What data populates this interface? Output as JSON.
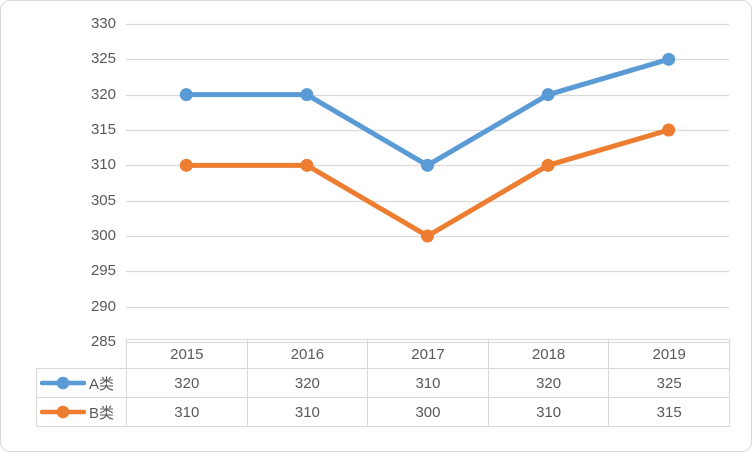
{
  "chart_data": {
    "type": "line",
    "title": "",
    "categories": [
      "2015",
      "2016",
      "2017",
      "2018",
      "2019"
    ],
    "series": [
      {
        "name": "A类",
        "values": [
          320,
          320,
          310,
          320,
          325
        ],
        "color": "#5B9BD5"
      },
      {
        "name": "B类",
        "values": [
          310,
          310,
          300,
          310,
          315
        ],
        "color": "#ED7D31"
      }
    ],
    "xlabel": "",
    "ylabel": "",
    "ylim": [
      285,
      330
    ],
    "ytick_step": 5,
    "yticks": [
      330,
      325,
      320,
      315,
      310,
      305,
      300,
      295,
      290,
      285
    ],
    "grid": "horizontal",
    "legend_position": "data-table-left",
    "marker": "circle",
    "colors": {
      "gridline": "#D9D9D9",
      "axis_text": "#595959",
      "table_border": "#D9D9D9",
      "table_text": "#595959",
      "background": "#FFFFFF",
      "frame_border": "#D9D9D9"
    }
  }
}
